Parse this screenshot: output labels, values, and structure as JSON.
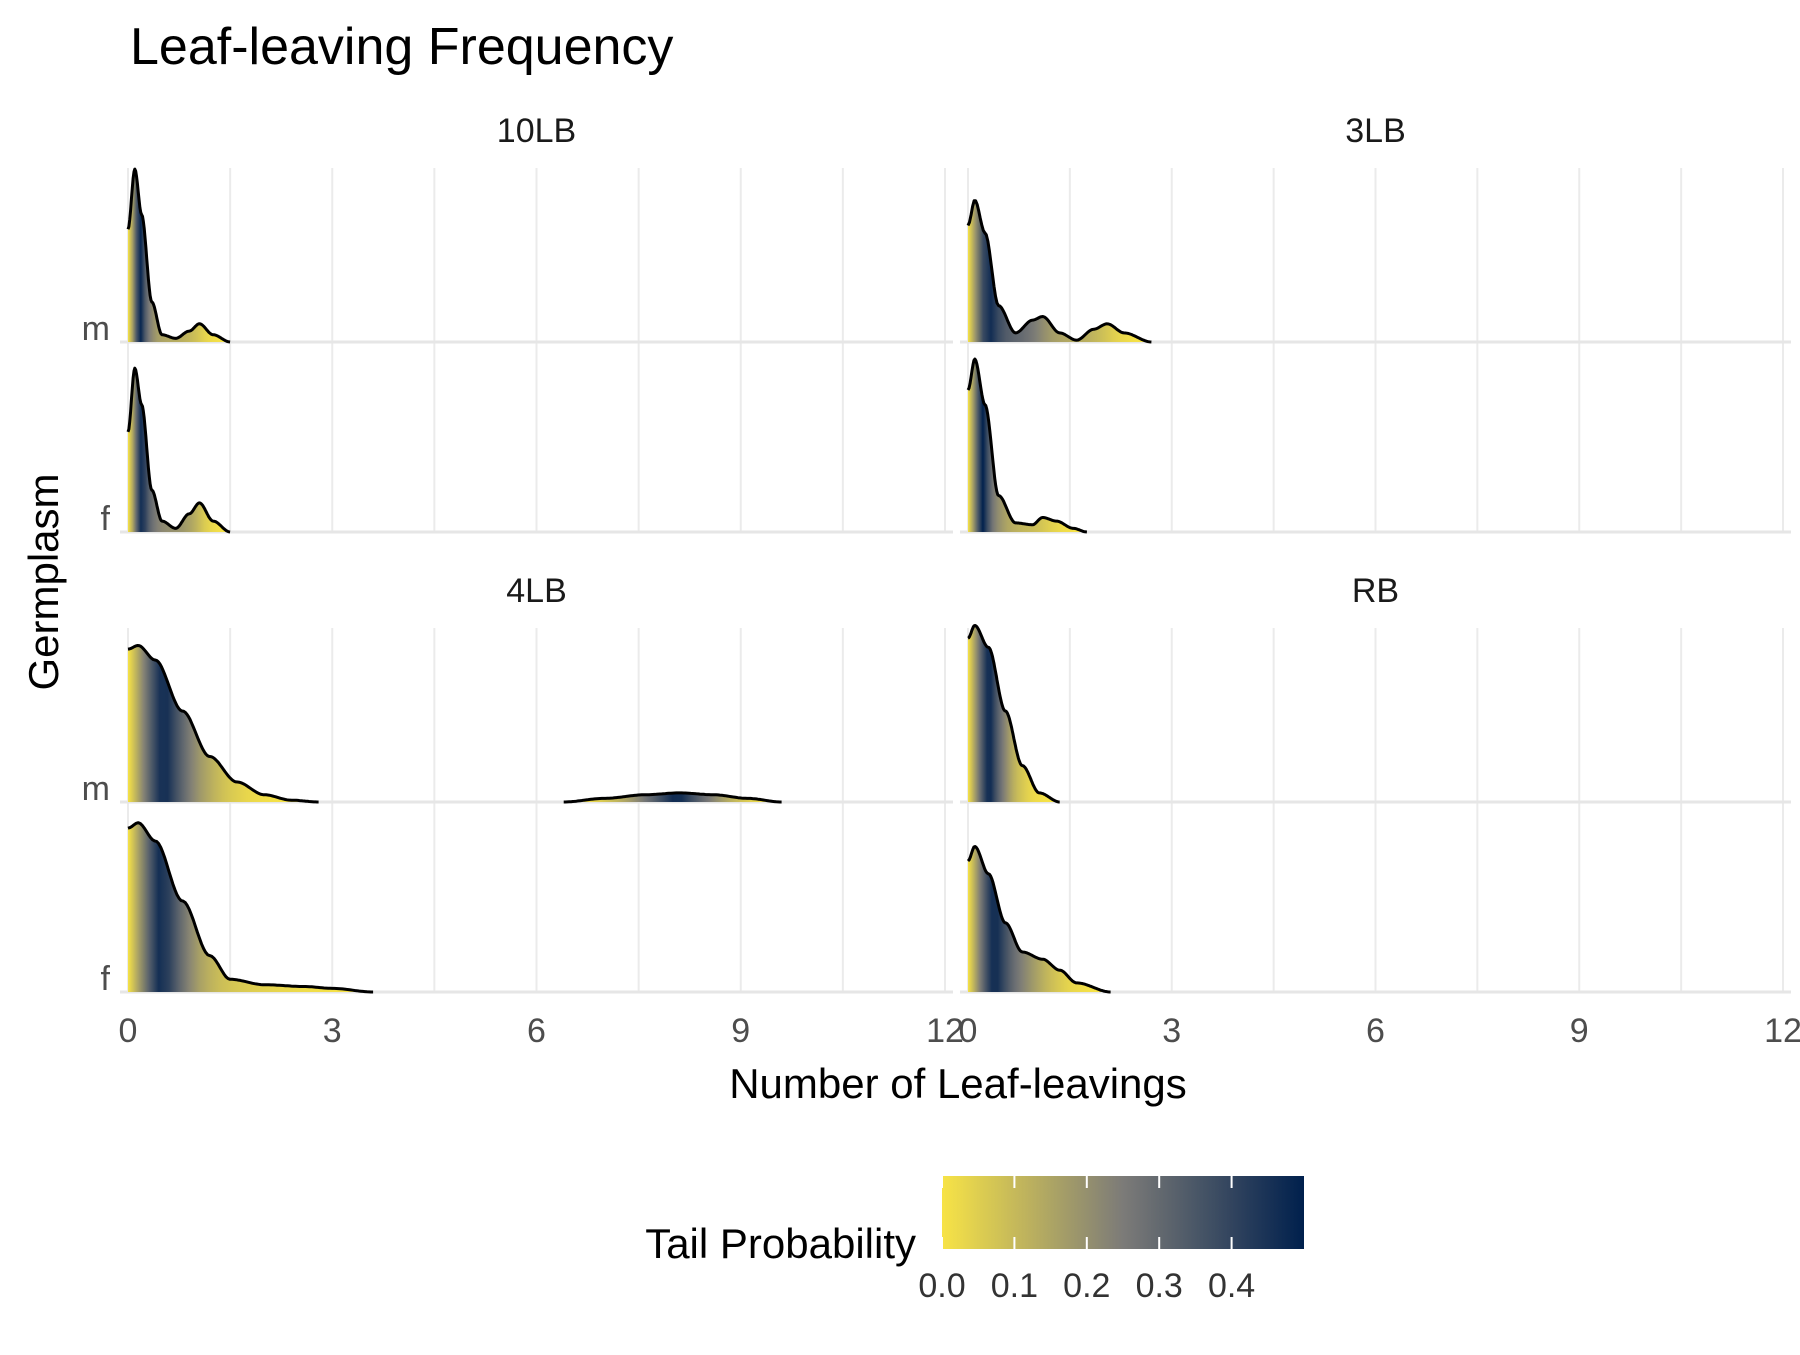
{
  "title": "Leaf-leaving Frequency",
  "xlabel": "Number of Leaf-leavings",
  "ylabel": "Germplasm",
  "legend": {
    "title": "Tail Probability",
    "ticks": [
      "0.0",
      "0.1",
      "0.2",
      "0.3",
      "0.4"
    ],
    "tick_values": [
      0.0,
      0.1,
      0.2,
      0.3,
      0.4
    ],
    "range": [
      0.0,
      0.5
    ],
    "color_low": "#f7e346",
    "color_mid": "#7c7b78",
    "color_high": "#00204d",
    "position": "bottom"
  },
  "chart_data": {
    "type": "ridgeline",
    "title": "Leaf-leaving Frequency",
    "xlabel": "Number of Leaf-leavings",
    "ylabel": "Germplasm",
    "xlim": [
      0,
      12
    ],
    "x_ticks": [
      0,
      3,
      6,
      9,
      12
    ],
    "x_tick_labels": [
      "0",
      "3",
      "6",
      "9",
      "12"
    ],
    "categories": [
      "f",
      "m"
    ],
    "fill_variable": "Tail Probability",
    "grid": true,
    "facets": [
      {
        "label": "10LB",
        "ridges": [
          {
            "group": "m",
            "density": [
              [
                0,
                0.62
              ],
              [
                0.1,
                0.95
              ],
              [
                0.2,
                0.7
              ],
              [
                0.35,
                0.22
              ],
              [
                0.5,
                0.04
              ],
              [
                0.7,
                0.02
              ],
              [
                0.9,
                0.06
              ],
              [
                1.05,
                0.1
              ],
              [
                1.25,
                0.04
              ],
              [
                1.5,
                0.0
              ]
            ]
          },
          {
            "group": "f",
            "density": [
              [
                0,
                0.55
              ],
              [
                0.1,
                0.9
              ],
              [
                0.2,
                0.7
              ],
              [
                0.35,
                0.23
              ],
              [
                0.5,
                0.06
              ],
              [
                0.7,
                0.02
              ],
              [
                0.9,
                0.1
              ],
              [
                1.05,
                0.16
              ],
              [
                1.25,
                0.06
              ],
              [
                1.5,
                0.0
              ]
            ]
          }
        ]
      },
      {
        "label": "3LB",
        "ridges": [
          {
            "group": "m",
            "density": [
              [
                0,
                0.64
              ],
              [
                0.1,
                0.78
              ],
              [
                0.25,
                0.6
              ],
              [
                0.45,
                0.2
              ],
              [
                0.7,
                0.05
              ],
              [
                0.95,
                0.12
              ],
              [
                1.1,
                0.14
              ],
              [
                1.35,
                0.05
              ],
              [
                1.6,
                0.01
              ],
              [
                1.85,
                0.07
              ],
              [
                2.05,
                0.1
              ],
              [
                2.3,
                0.05
              ],
              [
                2.7,
                0.0
              ]
            ]
          },
          {
            "group": "f",
            "density": [
              [
                0,
                0.78
              ],
              [
                0.1,
                0.95
              ],
              [
                0.25,
                0.7
              ],
              [
                0.45,
                0.2
              ],
              [
                0.7,
                0.05
              ],
              [
                0.95,
                0.04
              ],
              [
                1.1,
                0.08
              ],
              [
                1.3,
                0.06
              ],
              [
                1.55,
                0.02
              ],
              [
                1.75,
                0.0
              ]
            ]
          }
        ]
      },
      {
        "label": "4LB",
        "ridges": [
          {
            "group": "m",
            "density": [
              [
                0,
                0.84
              ],
              [
                0.15,
                0.86
              ],
              [
                0.4,
                0.78
              ],
              [
                0.8,
                0.5
              ],
              [
                1.2,
                0.25
              ],
              [
                1.6,
                0.11
              ],
              [
                2.0,
                0.04
              ],
              [
                2.4,
                0.01
              ],
              [
                2.8,
                0.0
              ]
            ],
            "secondary": [
              [
                6.4,
                0.0
              ],
              [
                7.0,
                0.02
              ],
              [
                7.6,
                0.04
              ],
              [
                8.1,
                0.05
              ],
              [
                8.6,
                0.04
              ],
              [
                9.1,
                0.02
              ],
              [
                9.6,
                0.0
              ]
            ]
          },
          {
            "group": "f",
            "density": [
              [
                0,
                0.9
              ],
              [
                0.15,
                0.93
              ],
              [
                0.4,
                0.83
              ],
              [
                0.8,
                0.5
              ],
              [
                1.2,
                0.2
              ],
              [
                1.5,
                0.07
              ],
              [
                2.0,
                0.04
              ],
              [
                2.6,
                0.03
              ],
              [
                3.0,
                0.02
              ],
              [
                3.6,
                0.0
              ]
            ]
          }
        ]
      },
      {
        "label": "RB",
        "ridges": [
          {
            "group": "m",
            "density": [
              [
                0,
                0.9
              ],
              [
                0.1,
                0.97
              ],
              [
                0.3,
                0.85
              ],
              [
                0.55,
                0.5
              ],
              [
                0.8,
                0.2
              ],
              [
                1.05,
                0.05
              ],
              [
                1.35,
                0.0
              ]
            ]
          },
          {
            "group": "f",
            "density": [
              [
                0,
                0.72
              ],
              [
                0.1,
                0.8
              ],
              [
                0.3,
                0.65
              ],
              [
                0.55,
                0.38
              ],
              [
                0.8,
                0.22
              ],
              [
                1.1,
                0.18
              ],
              [
                1.35,
                0.12
              ],
              [
                1.6,
                0.05
              ],
              [
                2.1,
                0.0
              ]
            ]
          }
        ]
      }
    ]
  }
}
